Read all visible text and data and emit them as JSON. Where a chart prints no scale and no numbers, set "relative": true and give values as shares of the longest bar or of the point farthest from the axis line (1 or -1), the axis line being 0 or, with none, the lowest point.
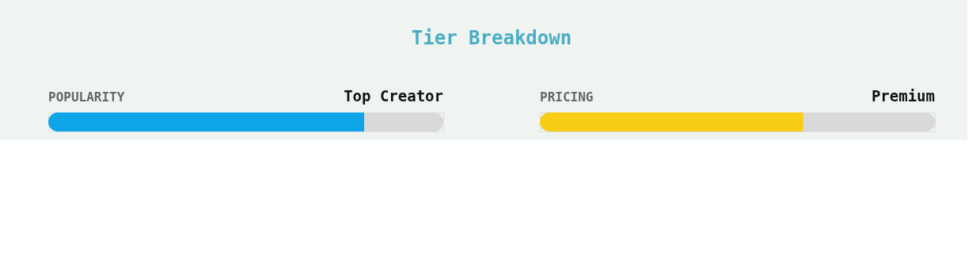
{
  "chart_data": [
    {
      "type": "other",
      "title": "Tier Breakdown"
    },
    {
      "type": "bar",
      "title": "POPULARITY",
      "annotations": [
        "Top Creator"
      ],
      "orientation": "horizontal",
      "stacked": true,
      "relative": true,
      "categories": [
        null
      ],
      "series": [
        {
          "color": "#0ea5e9",
          "values": [
            0.8
          ]
        },
        {
          "color": "#d9d9d9",
          "values": [
            0.2
          ]
        }
      ]
    },
    {
      "type": "bar",
      "title": "PRICING",
      "annotations": [
        "Premium"
      ],
      "orientation": "horizontal",
      "stacked": true,
      "relative": true,
      "categories": [
        null
      ],
      "series": [
        {
          "color": "#f9cc15",
          "values": [
            0.667
          ]
        },
        {
          "color": "#d9d9d9",
          "values": [
            0.333
          ]
        }
      ]
    }
  ]
}
